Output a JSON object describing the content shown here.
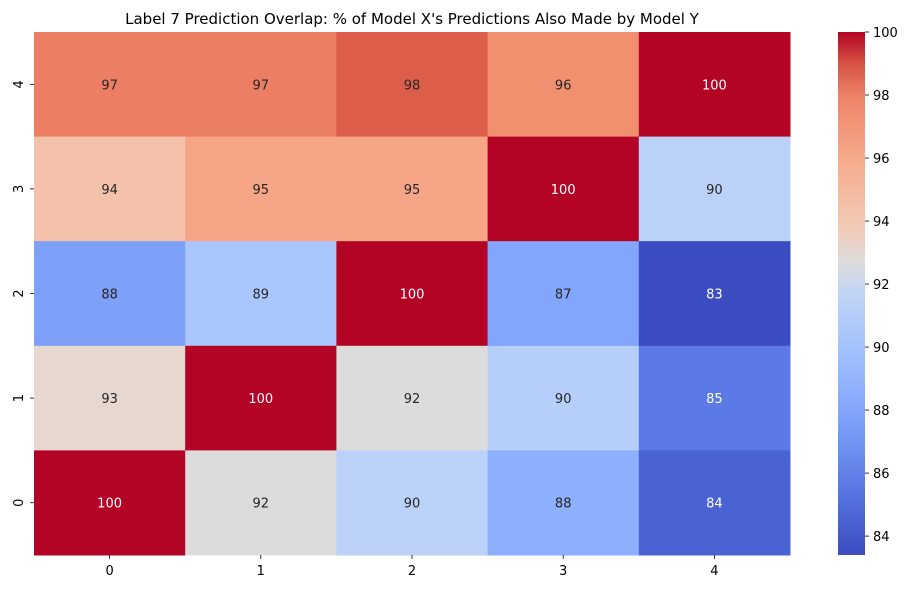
{
  "chart_data": {
    "type": "heatmap",
    "title": "Label 7 Prediction Overlap: % of Model X's Predictions Also Made by Model Y",
    "xlabel": "",
    "ylabel": "",
    "x_categories": [
      "0",
      "1",
      "2",
      "3",
      "4"
    ],
    "y_categories": [
      "4",
      "3",
      "2",
      "1",
      "0"
    ],
    "values": [
      [
        97,
        97,
        98,
        96,
        100
      ],
      [
        94,
        95,
        95,
        100,
        90
      ],
      [
        88,
        89,
        100,
        87,
        83
      ],
      [
        93,
        100,
        92,
        90,
        85
      ],
      [
        100,
        92,
        90,
        88,
        84
      ]
    ],
    "cell_colors": [
      [
        "#ec7f63",
        "#ec7f63",
        "#dc5d4a",
        "#f1906f",
        "#b40426"
      ],
      [
        "#f4c2aa",
        "#f6a586",
        "#f6a586",
        "#b40426",
        "#bbd1f8"
      ],
      [
        "#7da0f9",
        "#aac7fd",
        "#b40426",
        "#82a6fb",
        "#3b4cc0"
      ],
      [
        "#e6d7cf",
        "#b40426",
        "#dddcdc",
        "#b6cefa",
        "#5b7ae5"
      ],
      [
        "#b40426",
        "#dddcdc",
        "#bbd1f8",
        "#8db0fe",
        "#4a63d3"
      ]
    ],
    "colorbar": {
      "min": 83.4,
      "max": 100,
      "ticks": [
        84,
        86,
        88,
        90,
        92,
        94,
        96,
        98,
        100
      ],
      "colormap": "coolwarm"
    },
    "dark_text_color": "#262626",
    "light_text_color": "#ffffff"
  }
}
